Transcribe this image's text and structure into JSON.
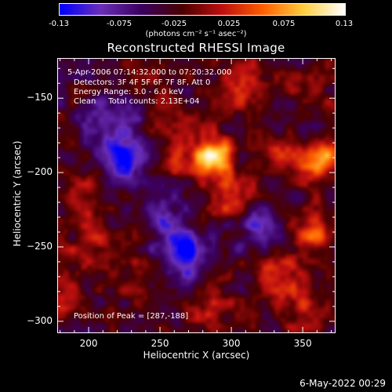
{
  "colorbar": {
    "min": -0.13,
    "max": 0.13,
    "ticks": [
      "-0.13",
      "-0.075",
      "-0.025",
      "0.025",
      "0.075",
      "0.13"
    ],
    "tick_values": [
      -0.13,
      -0.075,
      -0.025,
      0.025,
      0.075,
      0.13
    ],
    "units_label": "(photons cm⁻² s⁻¹ asec⁻²)",
    "colors": [
      "#0000ff",
      "#6b2fb8",
      "#3a0060",
      "#4a0000",
      "#c01010",
      "#ff6000",
      "#ffcf40",
      "#ffffff"
    ]
  },
  "chart_data": {
    "type": "heatmap",
    "title": "Reconstructed RHESSI Image",
    "xlabel": "Heliocentric X (arcsec)",
    "ylabel": "Heliocentric Y (arcsec)",
    "xlim": [
      178,
      373
    ],
    "ylim": [
      -308,
      -123
    ],
    "xticks": [
      200,
      250,
      300,
      350
    ],
    "yticks": [
      -150,
      -200,
      -250,
      -300
    ],
    "annotations": {
      "time": "5-Apr-2006 07:14:32.000 to 07:20:32.000",
      "detectors": "Detectors: 3F 4F 5F 6F 7F 8F, Att 0",
      "energy": "Energy Range: 3.0 - 6.0 keV",
      "clean": "Clean     Total counts: 2.13E+04",
      "peak": "Position of Peak = [287,-188]"
    },
    "peak": [
      287,
      -188
    ],
    "sources": [
      {
        "x": 287,
        "y": -188,
        "value": 0.13
      },
      {
        "x": 365,
        "y": -190,
        "value": 0.1
      },
      {
        "x": 300,
        "y": -215,
        "value": 0.06
      },
      {
        "x": 260,
        "y": -188,
        "value": 0.05
      },
      {
        "x": 340,
        "y": -185,
        "value": 0.06
      },
      {
        "x": 350,
        "y": -150,
        "value": 0.05
      },
      {
        "x": 360,
        "y": -240,
        "value": 0.06
      },
      {
        "x": 330,
        "y": -265,
        "value": 0.05
      },
      {
        "x": 350,
        "y": -290,
        "value": 0.05
      },
      {
        "x": 200,
        "y": -210,
        "value": 0.04
      },
      {
        "x": 205,
        "y": -250,
        "value": 0.04
      },
      {
        "x": 285,
        "y": -290,
        "value": 0.04
      },
      {
        "x": 240,
        "y": -270,
        "value": 0.03
      },
      {
        "x": 310,
        "y": -140,
        "value": 0.05
      },
      {
        "x": 250,
        "y": -140,
        "value": 0.02
      },
      {
        "x": 180,
        "y": -285,
        "value": 0.03
      },
      {
        "x": 225,
        "y": -190,
        "value": -0.1
      },
      {
        "x": 265,
        "y": -255,
        "value": -0.11
      },
      {
        "x": 215,
        "y": -160,
        "value": -0.06
      },
      {
        "x": 250,
        "y": -225,
        "value": -0.05
      },
      {
        "x": 320,
        "y": -240,
        "value": -0.06
      },
      {
        "x": 345,
        "y": -165,
        "value": -0.05
      }
    ]
  },
  "footer": {
    "timestamp": "6-May-2022 00:29"
  }
}
